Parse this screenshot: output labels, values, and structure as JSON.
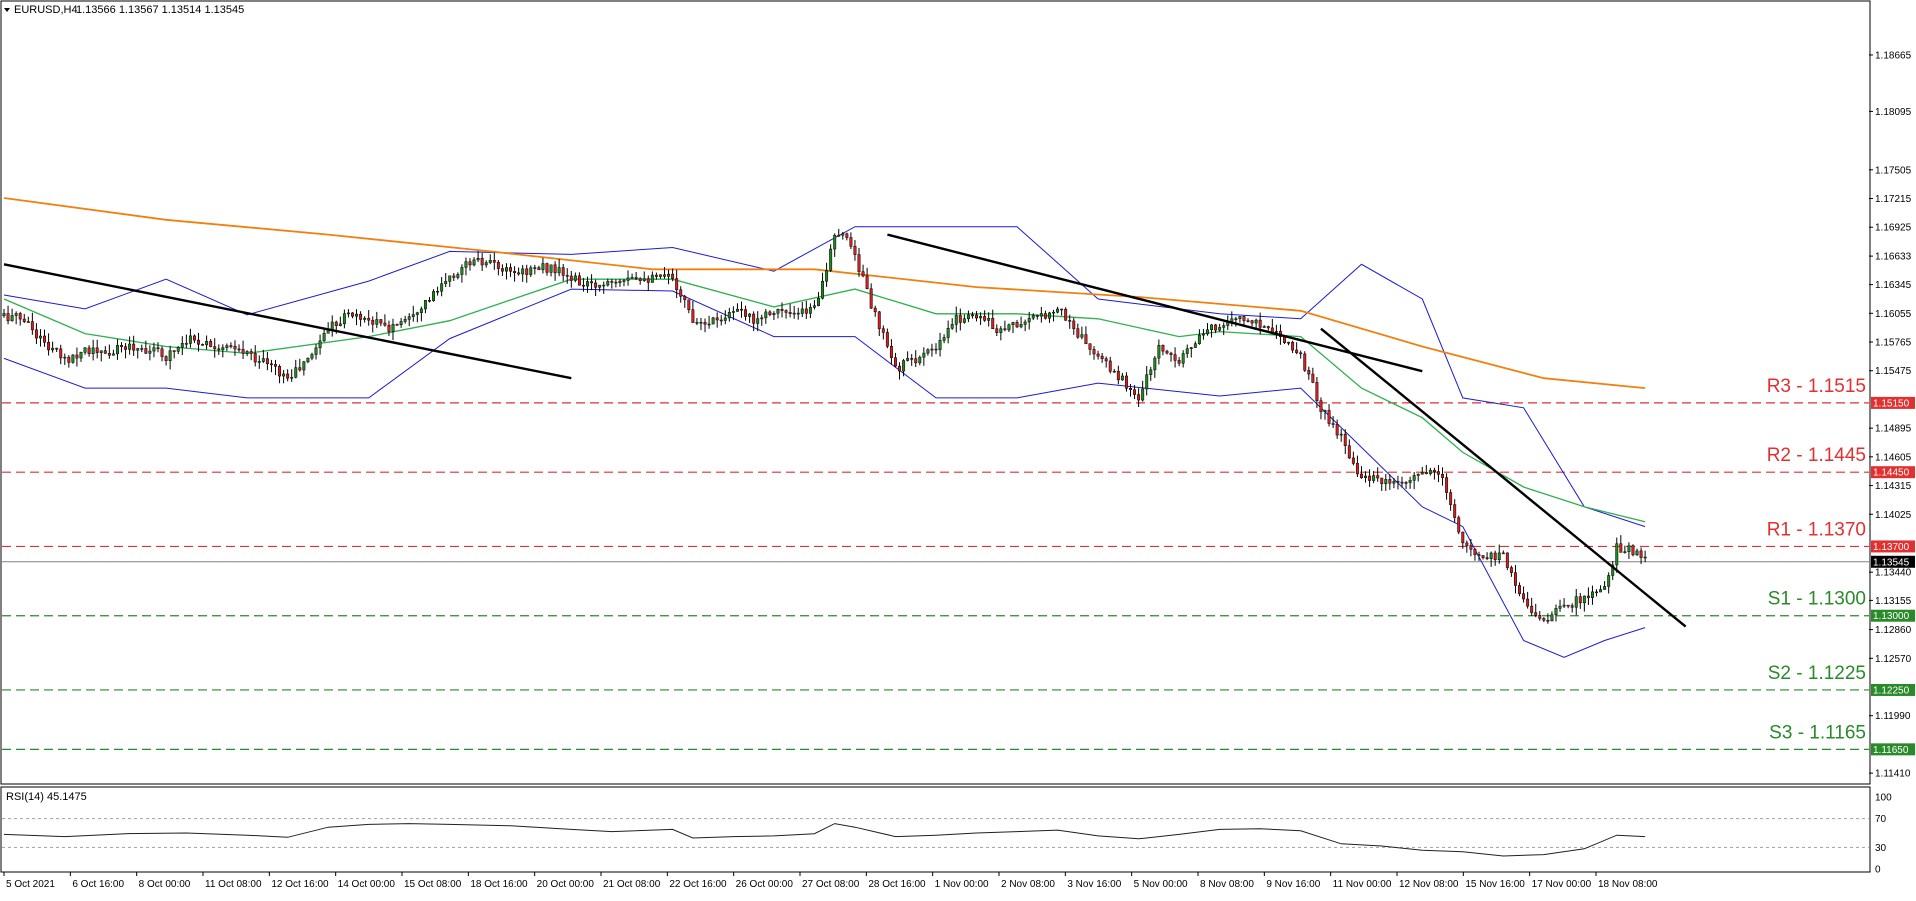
{
  "header": {
    "arrow_icon": "triangle-down-icon",
    "symbol": "EURUSD,H4",
    "ohlc": "1.13566 1.13567 1.13514 1.13545"
  },
  "rsi_header": "RSI(14) 45.1475",
  "colors": {
    "background": "#ffffff",
    "candle_up": "#1e8a1e",
    "candle_down": "#d42020",
    "bollinger": "#1c1cd0",
    "ma_mid": "#30b050",
    "ma_long": "#f08010",
    "trendline": "#000000",
    "resistance": "#e03030",
    "support": "#2a8a2a",
    "current_price": "#808080",
    "rsi_line": "#202020"
  },
  "chart_data": [
    {
      "type": "candlestick",
      "symbol": "EURUSD",
      "timeframe": "H4",
      "ylim": [
        1.113,
        1.192
      ],
      "y_ticks": [
        "1.18665",
        "1.18095",
        "1.17505",
        "1.17215",
        "1.16925",
        "1.16633",
        "1.16345",
        "1.16055",
        "1.15765",
        "1.15475",
        "1.14895",
        "1.14605",
        "1.14315",
        "1.14025",
        "1.13440",
        "1.13155",
        "1.12860",
        "1.12570",
        "1.11990",
        "1.11410"
      ],
      "x_ticks": [
        "5 Oct 2021",
        "6 Oct 16:00",
        "8 Oct 00:00",
        "11 Oct 08:00",
        "12 Oct 16:00",
        "14 Oct 00:00",
        "15 Oct 08:00",
        "18 Oct 16:00",
        "20 Oct 00:00",
        "21 Oct 08:00",
        "22 Oct 16:00",
        "26 Oct 00:00",
        "27 Oct 08:00",
        "28 Oct 16:00",
        "1 Nov 00:00",
        "2 Nov 08:00",
        "3 Nov 16:00",
        "5 Nov 00:00",
        "8 Nov 08:00",
        "9 Nov 16:00",
        "11 Nov 00:00",
        "12 Nov 08:00",
        "15 Nov 16:00",
        "17 Nov 00:00",
        "18 Nov 08:00"
      ],
      "price_path": [
        [
          0,
          1.1603
        ],
        [
          5,
          1.16
        ],
        [
          10,
          1.1575
        ],
        [
          15,
          1.1558
        ],
        [
          20,
          1.157
        ],
        [
          25,
          1.1563
        ],
        [
          30,
          1.1572
        ],
        [
          35,
          1.157
        ],
        [
          40,
          1.1562
        ],
        [
          45,
          1.158
        ],
        [
          50,
          1.1576
        ],
        [
          55,
          1.157
        ],
        [
          60,
          1.1565
        ],
        [
          65,
          1.1555
        ],
        [
          70,
          1.154
        ],
        [
          75,
          1.1558
        ],
        [
          80,
          1.1592
        ],
        [
          85,
          1.1605
        ],
        [
          90,
          1.16
        ],
        [
          95,
          1.159
        ],
        [
          100,
          1.1605
        ],
        [
          105,
          1.162
        ],
        [
          110,
          1.164
        ],
        [
          115,
          1.1658
        ],
        [
          120,
          1.1655
        ],
        [
          125,
          1.1645
        ],
        [
          130,
          1.165
        ],
        [
          135,
          1.1652
        ],
        [
          140,
          1.164
        ],
        [
          145,
          1.1632
        ],
        [
          150,
          1.164
        ],
        [
          155,
          1.1645
        ],
        [
          160,
          1.164
        ],
        [
          165,
          1.1642
        ],
        [
          170,
          1.16
        ],
        [
          175,
          1.1598
        ],
        [
          180,
          1.1608
        ],
        [
          185,
          1.16
        ],
        [
          190,
          1.161
        ],
        [
          195,
          1.1602
        ],
        [
          200,
          1.1612
        ],
        [
          205,
          1.168
        ],
        [
          208,
          1.1685
        ],
        [
          210,
          1.1665
        ],
        [
          215,
          1.1602
        ],
        [
          220,
          1.155
        ],
        [
          225,
          1.156
        ],
        [
          230,
          1.1568
        ],
        [
          235,
          1.16
        ],
        [
          240,
          1.1605
        ],
        [
          245,
          1.159
        ],
        [
          250,
          1.1595
        ],
        [
          255,
          1.16
        ],
        [
          260,
          1.1612
        ],
        [
          265,
          1.1585
        ],
        [
          270,
          1.156
        ],
        [
          275,
          1.1542
        ],
        [
          280,
          1.152
        ],
        [
          285,
          1.157
        ],
        [
          290,
          1.156
        ],
        [
          295,
          1.158
        ],
        [
          300,
          1.1595
        ],
        [
          305,
          1.16
        ],
        [
          310,
          1.1595
        ],
        [
          315,
          1.1585
        ],
        [
          320,
          1.1563
        ],
        [
          325,
          1.151
        ],
        [
          330,
          1.148
        ],
        [
          335,
          1.144
        ],
        [
          340,
          1.1435
        ],
        [
          345,
          1.143
        ],
        [
          350,
          1.1445
        ],
        [
          355,
          1.144
        ],
        [
          360,
          1.137
        ],
        [
          365,
          1.136
        ],
        [
          370,
          1.1362
        ],
        [
          375,
          1.1315
        ],
        [
          380,
          1.1295
        ],
        [
          385,
          1.131
        ],
        [
          390,
          1.1318
        ],
        [
          395,
          1.1325
        ],
        [
          398,
          1.137
        ],
        [
          402,
          1.1365
        ],
        [
          405,
          1.1355
        ]
      ],
      "series": [
        {
          "name": "",
          "kind": "bollinger_upper",
          "values": [
            [
              0,
              1.1624
            ],
            [
              20,
              1.161
            ],
            [
              40,
              1.164
            ],
            [
              60,
              1.1604
            ],
            [
              90,
              1.1638
            ],
            [
              110,
              1.1668
            ],
            [
              140,
              1.1665
            ],
            [
              165,
              1.1672
            ],
            [
              190,
              1.1648
            ],
            [
              210,
              1.1693
            ],
            [
              250,
              1.1693
            ],
            [
              270,
              1.162
            ],
            [
              300,
              1.1605
            ],
            [
              320,
              1.16
            ],
            [
              335,
              1.1655
            ],
            [
              350,
              1.162
            ],
            [
              360,
              1.152
            ],
            [
              375,
              1.151
            ],
            [
              390,
              1.141
            ],
            [
              405,
              1.139
            ]
          ]
        },
        {
          "name": "",
          "kind": "bollinger_lower",
          "values": [
            [
              0,
              1.156
            ],
            [
              20,
              1.153
            ],
            [
              40,
              1.153
            ],
            [
              60,
              1.152
            ],
            [
              90,
              1.152
            ],
            [
              110,
              1.158
            ],
            [
              140,
              1.163
            ],
            [
              165,
              1.1628
            ],
            [
              190,
              1.1582
            ],
            [
              210,
              1.1582
            ],
            [
              230,
              1.152
            ],
            [
              250,
              1.152
            ],
            [
              270,
              1.1535
            ],
            [
              300,
              1.1522
            ],
            [
              320,
              1.153
            ],
            [
              335,
              1.147
            ],
            [
              350,
              1.141
            ],
            [
              360,
              1.139
            ],
            [
              375,
              1.1275
            ],
            [
              385,
              1.1258
            ],
            [
              395,
              1.1275
            ],
            [
              405,
              1.1288
            ]
          ]
        },
        {
          "name": "",
          "kind": "moving_average_mid",
          "values": [
            [
              0,
              1.162
            ],
            [
              20,
              1.1585
            ],
            [
              40,
              1.1572
            ],
            [
              60,
              1.1565
            ],
            [
              90,
              1.1582
            ],
            [
              110,
              1.1598
            ],
            [
              140,
              1.164
            ],
            [
              165,
              1.164
            ],
            [
              190,
              1.1612
            ],
            [
              210,
              1.163
            ],
            [
              230,
              1.1605
            ],
            [
              250,
              1.1605
            ],
            [
              270,
              1.16
            ],
            [
              290,
              1.1582
            ],
            [
              300,
              1.1587
            ],
            [
              320,
              1.1582
            ],
            [
              335,
              1.153
            ],
            [
              350,
              1.15
            ],
            [
              360,
              1.1465
            ],
            [
              375,
              1.143
            ],
            [
              390,
              1.141
            ],
            [
              405,
              1.1395
            ]
          ]
        },
        {
          "name": "",
          "kind": "moving_average_long",
          "values": [
            [
              0,
              1.1722
            ],
            [
              40,
              1.17
            ],
            [
              80,
              1.1685
            ],
            [
              120,
              1.1668
            ],
            [
              160,
              1.165
            ],
            [
              200,
              1.165
            ],
            [
              240,
              1.1632
            ],
            [
              280,
              1.1622
            ],
            [
              320,
              1.1608
            ],
            [
              350,
              1.1572
            ],
            [
              380,
              1.154
            ],
            [
              405,
              1.153
            ]
          ]
        }
      ],
      "trendlines": [
        {
          "from": [
            0,
            1.1655
          ],
          "to": [
            140,
            1.154
          ]
        },
        {
          "from": [
            218,
            1.1685
          ],
          "to": [
            350,
            1.1547
          ]
        },
        {
          "from": [
            325,
            1.159
          ],
          "to": [
            415,
            1.1289
          ]
        }
      ],
      "levels": [
        {
          "label": "R3 - 1.1515",
          "value": 1.1515,
          "tag": "1.15150",
          "kind": "resistance"
        },
        {
          "label": "R2 - 1.1445",
          "value": 1.1445,
          "tag": "1.14450",
          "kind": "resistance"
        },
        {
          "label": "R1 - 1.1370",
          "value": 1.137,
          "tag": "1.13700",
          "kind": "resistance"
        },
        {
          "label": "S1 - 1.1300",
          "value": 1.13,
          "tag": "1.13000",
          "kind": "support"
        },
        {
          "label": "S2 - 1.1225",
          "value": 1.1225,
          "tag": "1.12250",
          "kind": "support"
        },
        {
          "label": "S3 - 1.1165",
          "value": 1.1165,
          "tag": "1.11650",
          "kind": "support"
        }
      ],
      "current_price": {
        "value": 1.13545,
        "tag": "1.13545"
      },
      "grid": false
    },
    {
      "type": "line",
      "name": "RSI(14)",
      "ylim": [
        0,
        100
      ],
      "y_ticks": [
        "100",
        "70",
        "30",
        "0"
      ],
      "levels": [
        70,
        30
      ],
      "values": [
        [
          0,
          48
        ],
        [
          15,
          45
        ],
        [
          30,
          49
        ],
        [
          45,
          50
        ],
        [
          60,
          47
        ],
        [
          70,
          44
        ],
        [
          80,
          58
        ],
        [
          90,
          62
        ],
        [
          100,
          63
        ],
        [
          110,
          62
        ],
        [
          125,
          60
        ],
        [
          140,
          55
        ],
        [
          150,
          52
        ],
        [
          165,
          55
        ],
        [
          170,
          43
        ],
        [
          180,
          45
        ],
        [
          190,
          46
        ],
        [
          200,
          49
        ],
        [
          205,
          63
        ],
        [
          210,
          58
        ],
        [
          220,
          45
        ],
        [
          230,
          47
        ],
        [
          240,
          50
        ],
        [
          250,
          52
        ],
        [
          260,
          54
        ],
        [
          270,
          46
        ],
        [
          280,
          42
        ],
        [
          290,
          48
        ],
        [
          300,
          55
        ],
        [
          310,
          56
        ],
        [
          320,
          53
        ],
        [
          330,
          35
        ],
        [
          340,
          32
        ],
        [
          350,
          26
        ],
        [
          360,
          24
        ],
        [
          370,
          18
        ],
        [
          380,
          20
        ],
        [
          390,
          28
        ],
        [
          398,
          47
        ],
        [
          405,
          45
        ]
      ]
    }
  ]
}
